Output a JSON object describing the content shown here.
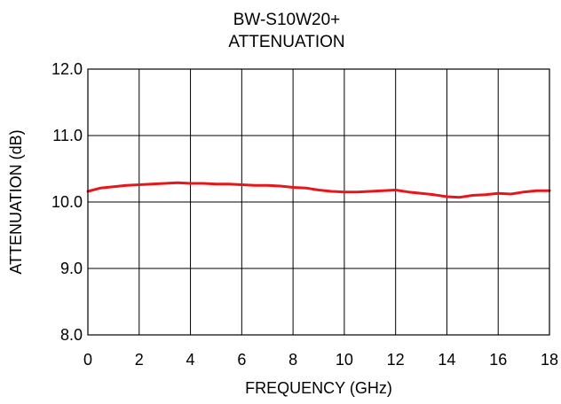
{
  "chart_data": {
    "type": "line",
    "title_lines": [
      "BW-S10W20+",
      "ATTENUATION"
    ],
    "xlabel": "FREQUENCY (GHz)",
    "ylabel": "ATTENUATION (dB)",
    "xlim": [
      0,
      18
    ],
    "ylim": [
      8.0,
      12.0
    ],
    "xticks": [
      0,
      2,
      4,
      6,
      8,
      10,
      12,
      14,
      16,
      18
    ],
    "xtick_labels": [
      "0",
      "2",
      "4",
      "6",
      "8",
      "10",
      "12",
      "14",
      "16",
      "18"
    ],
    "yticks": [
      8.0,
      9.0,
      10.0,
      11.0,
      12.0
    ],
    "ytick_labels": [
      "8.0",
      "9.0",
      "10.0",
      "11.0",
      "12.0"
    ],
    "grid": true,
    "legend": "none",
    "series": [
      {
        "color": "#e8161b",
        "x": [
          0,
          0.5,
          1,
          1.5,
          2,
          2.5,
          3,
          3.5,
          4,
          4.5,
          5,
          5.5,
          6,
          6.5,
          7,
          7.5,
          8,
          8.5,
          9,
          9.5,
          10,
          10.5,
          11,
          11.5,
          12,
          12.5,
          13,
          13.5,
          14,
          14.5,
          15,
          15.5,
          16,
          16.5,
          17,
          17.5,
          18
        ],
        "y": [
          10.16,
          10.21,
          10.23,
          10.25,
          10.26,
          10.27,
          10.28,
          10.29,
          10.28,
          10.28,
          10.27,
          10.27,
          10.26,
          10.25,
          10.25,
          10.24,
          10.22,
          10.21,
          10.18,
          10.16,
          10.15,
          10.15,
          10.16,
          10.17,
          10.18,
          10.15,
          10.13,
          10.11,
          10.08,
          10.07,
          10.1,
          10.11,
          10.13,
          10.12,
          10.15,
          10.17,
          10.17
        ]
      }
    ]
  }
}
